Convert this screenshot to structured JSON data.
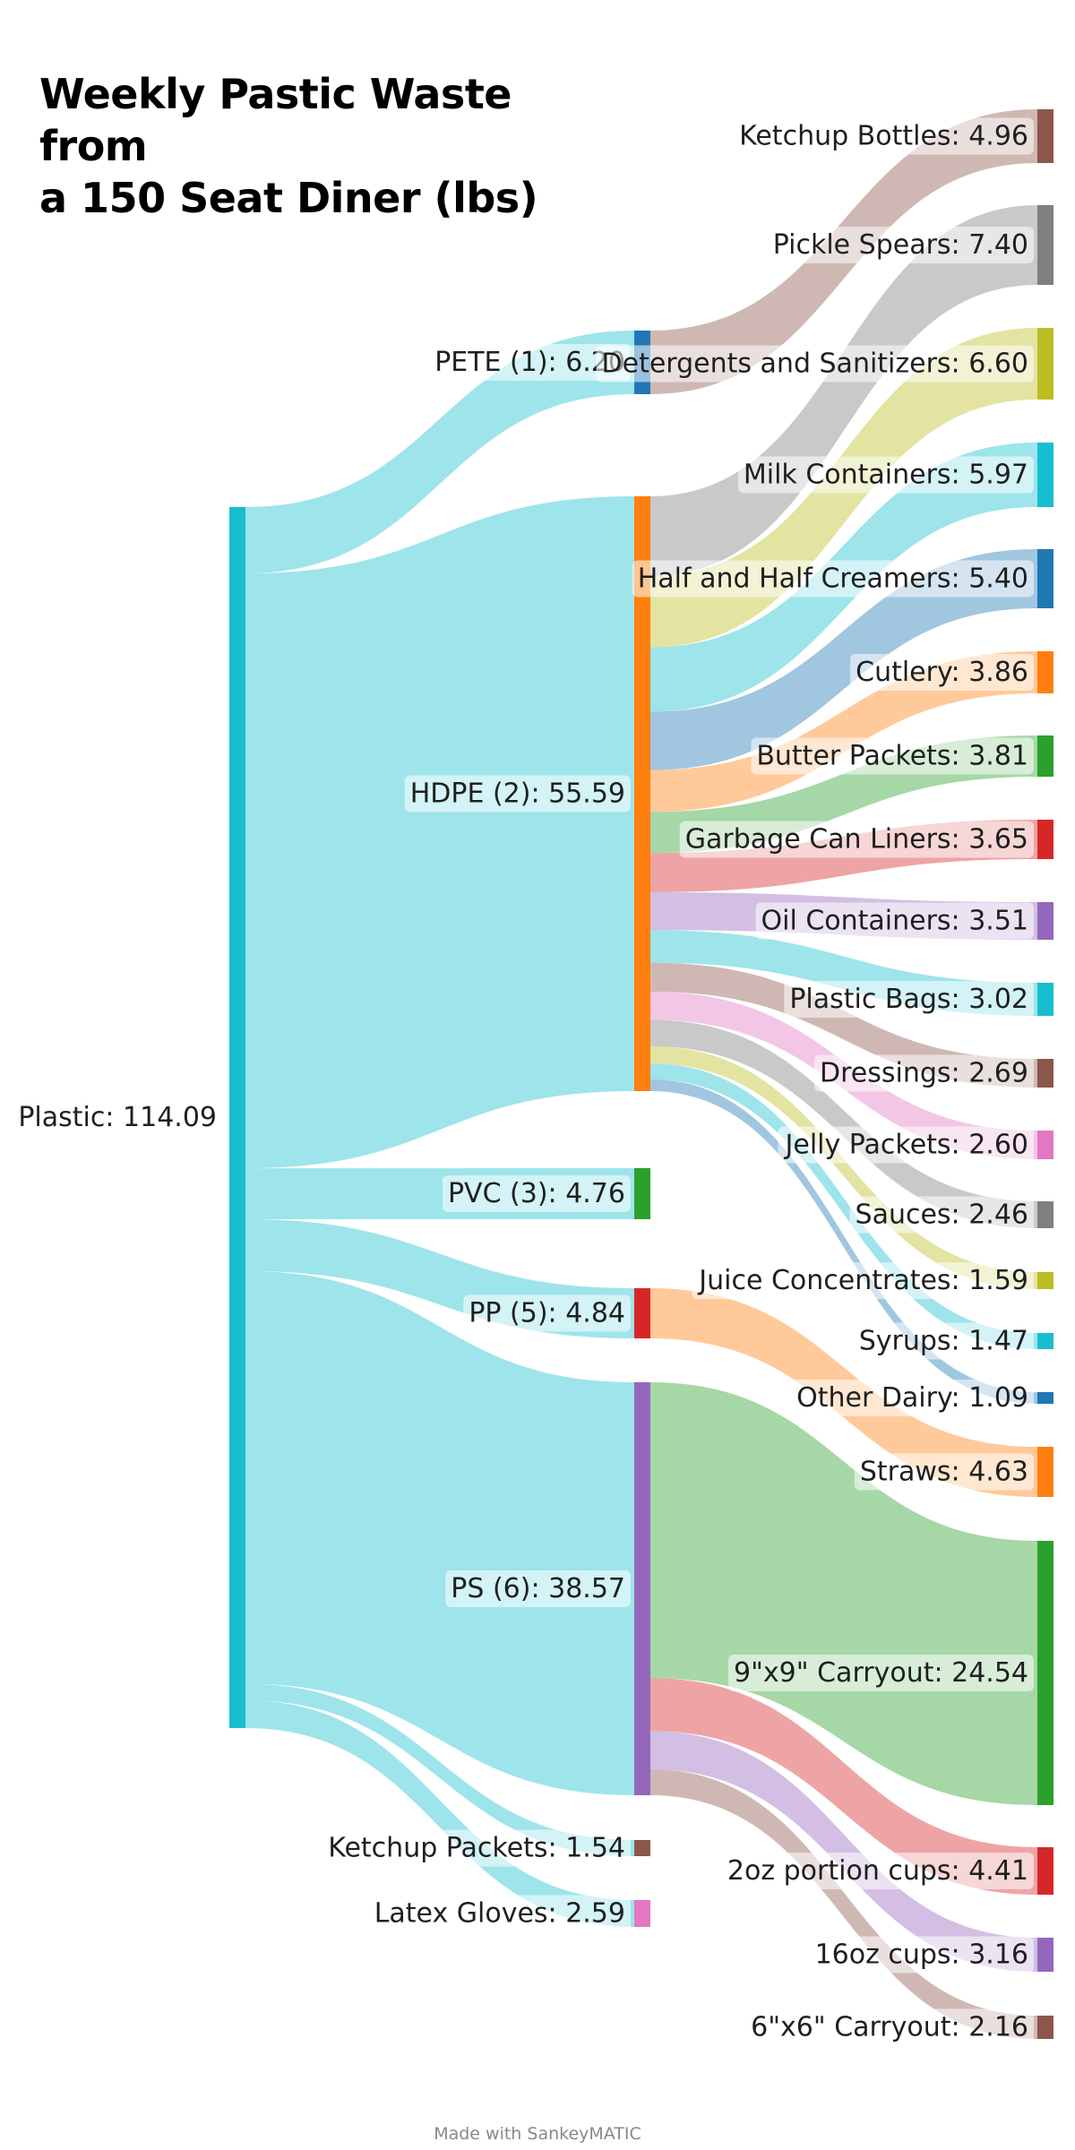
{
  "title_lines": [
    "Weekly Pastic Waste from",
    "a 150 Seat Diner (lbs)"
  ],
  "credit": "Made with SankeyMATIC",
  "nodes": [
    {
      "id": "plastic",
      "label": "Plastic: 114.09",
      "color": "#17becf"
    },
    {
      "id": "pete",
      "label": "PETE (1): 6.20",
      "color": "#1f77b4"
    },
    {
      "id": "hdpe",
      "label": "HDPE (2): 55.59",
      "color": "#ff7f0e"
    },
    {
      "id": "pvc",
      "label": "PVC (3): 4.76",
      "color": "#2ca02c"
    },
    {
      "id": "pp",
      "label": "PP (5): 4.84",
      "color": "#d62728"
    },
    {
      "id": "ps",
      "label": "PS (6): 38.57",
      "color": "#9467bd"
    },
    {
      "id": "ketchup_packets",
      "label": "Ketchup Packets: 1.54",
      "color": "#8c564b"
    },
    {
      "id": "latex",
      "label": "Latex Gloves: 2.59",
      "color": "#e377c2"
    },
    {
      "id": "ketchup_bottles",
      "label": "Ketchup Bottles: 4.96",
      "color": "#8c564b"
    },
    {
      "id": "pickle",
      "label": "Pickle Spears: 7.40",
      "color": "#7f7f7f"
    },
    {
      "id": "detergents",
      "label": "Detergents and Sanitizers: 6.60",
      "color": "#bcbd22"
    },
    {
      "id": "milk",
      "label": "Milk Containers: 5.97",
      "color": "#17becf"
    },
    {
      "id": "halfhalf",
      "label": "Half and Half Creamers: 5.40",
      "color": "#1f77b4"
    },
    {
      "id": "cutlery",
      "label": "Cutlery: 3.86",
      "color": "#ff7f0e"
    },
    {
      "id": "butter",
      "label": "Butter Packets: 3.81",
      "color": "#2ca02c"
    },
    {
      "id": "liners",
      "label": "Garbage Can Liners: 3.65",
      "color": "#d62728"
    },
    {
      "id": "oil",
      "label": "Oil Containers: 3.51",
      "color": "#9467bd"
    },
    {
      "id": "bags",
      "label": "Plastic Bags: 3.02",
      "color": "#17becf"
    },
    {
      "id": "dressings",
      "label": "Dressings: 2.69",
      "color": "#8c564b"
    },
    {
      "id": "jelly",
      "label": "Jelly Packets: 2.60",
      "color": "#e377c2"
    },
    {
      "id": "sauces",
      "label": "Sauces: 2.46",
      "color": "#7f7f7f"
    },
    {
      "id": "juice",
      "label": "Juice Concentrates: 1.59",
      "color": "#bcbd22"
    },
    {
      "id": "syrups",
      "label": "Syrups: 1.47",
      "color": "#17becf"
    },
    {
      "id": "otherdairy",
      "label": "Other Dairy: 1.09",
      "color": "#1f77b4"
    },
    {
      "id": "straws",
      "label": "Straws: 4.63",
      "color": "#ff7f0e"
    },
    {
      "id": "carry9",
      "label": "9\"x9\" Carryout: 24.54",
      "color": "#2ca02c"
    },
    {
      "id": "cups2",
      "label": "2oz portion cups: 4.41",
      "color": "#d62728"
    },
    {
      "id": "cups16",
      "label": "16oz cups: 3.16",
      "color": "#9467bd"
    },
    {
      "id": "carry6",
      "label": "6\"x6\" Carryout: 2.16",
      "color": "#8c564b"
    }
  ],
  "flows": [
    {
      "from": "plastic",
      "to": "pete",
      "value": 6.2
    },
    {
      "from": "plastic",
      "to": "hdpe",
      "value": 55.59
    },
    {
      "from": "plastic",
      "to": "pvc",
      "value": 4.76
    },
    {
      "from": "plastic",
      "to": "pp",
      "value": 4.84
    },
    {
      "from": "plastic",
      "to": "ps",
      "value": 38.57
    },
    {
      "from": "plastic",
      "to": "ketchup_packets",
      "value": 1.54
    },
    {
      "from": "plastic",
      "to": "latex",
      "value": 2.59
    },
    {
      "from": "pete",
      "to": "ketchup_bottles",
      "value": 4.96
    },
    {
      "from": "pete",
      "to": "halfhalf",
      "value": 0.0
    },
    {
      "from": "hdpe",
      "to": "pickle",
      "value": 7.4
    },
    {
      "from": "hdpe",
      "to": "detergents",
      "value": 6.6
    },
    {
      "from": "hdpe",
      "to": "milk",
      "value": 5.97
    },
    {
      "from": "hdpe",
      "to": "halfhalf",
      "value": 5.4
    },
    {
      "from": "hdpe",
      "to": "cutlery",
      "value": 3.86
    },
    {
      "from": "hdpe",
      "to": "butter",
      "value": 3.81
    },
    {
      "from": "hdpe",
      "to": "liners",
      "value": 3.65
    },
    {
      "from": "hdpe",
      "to": "oil",
      "value": 3.51
    },
    {
      "from": "hdpe",
      "to": "bags",
      "value": 3.02
    },
    {
      "from": "hdpe",
      "to": "dressings",
      "value": 2.69
    },
    {
      "from": "hdpe",
      "to": "jelly",
      "value": 2.6
    },
    {
      "from": "hdpe",
      "to": "sauces",
      "value": 2.46
    },
    {
      "from": "hdpe",
      "to": "juice",
      "value": 1.59
    },
    {
      "from": "hdpe",
      "to": "syrups",
      "value": 1.47
    },
    {
      "from": "hdpe",
      "to": "otherdairy",
      "value": 1.09
    },
    {
      "from": "pp",
      "to": "straws",
      "value": 4.63
    },
    {
      "from": "ps",
      "to": "carry9",
      "value": 24.54
    },
    {
      "from": "ps",
      "to": "cups2",
      "value": 4.41
    },
    {
      "from": "ps",
      "to": "cups16",
      "value": 3.16
    },
    {
      "from": "ps",
      "to": "carry6",
      "value": 2.16
    }
  ]
}
